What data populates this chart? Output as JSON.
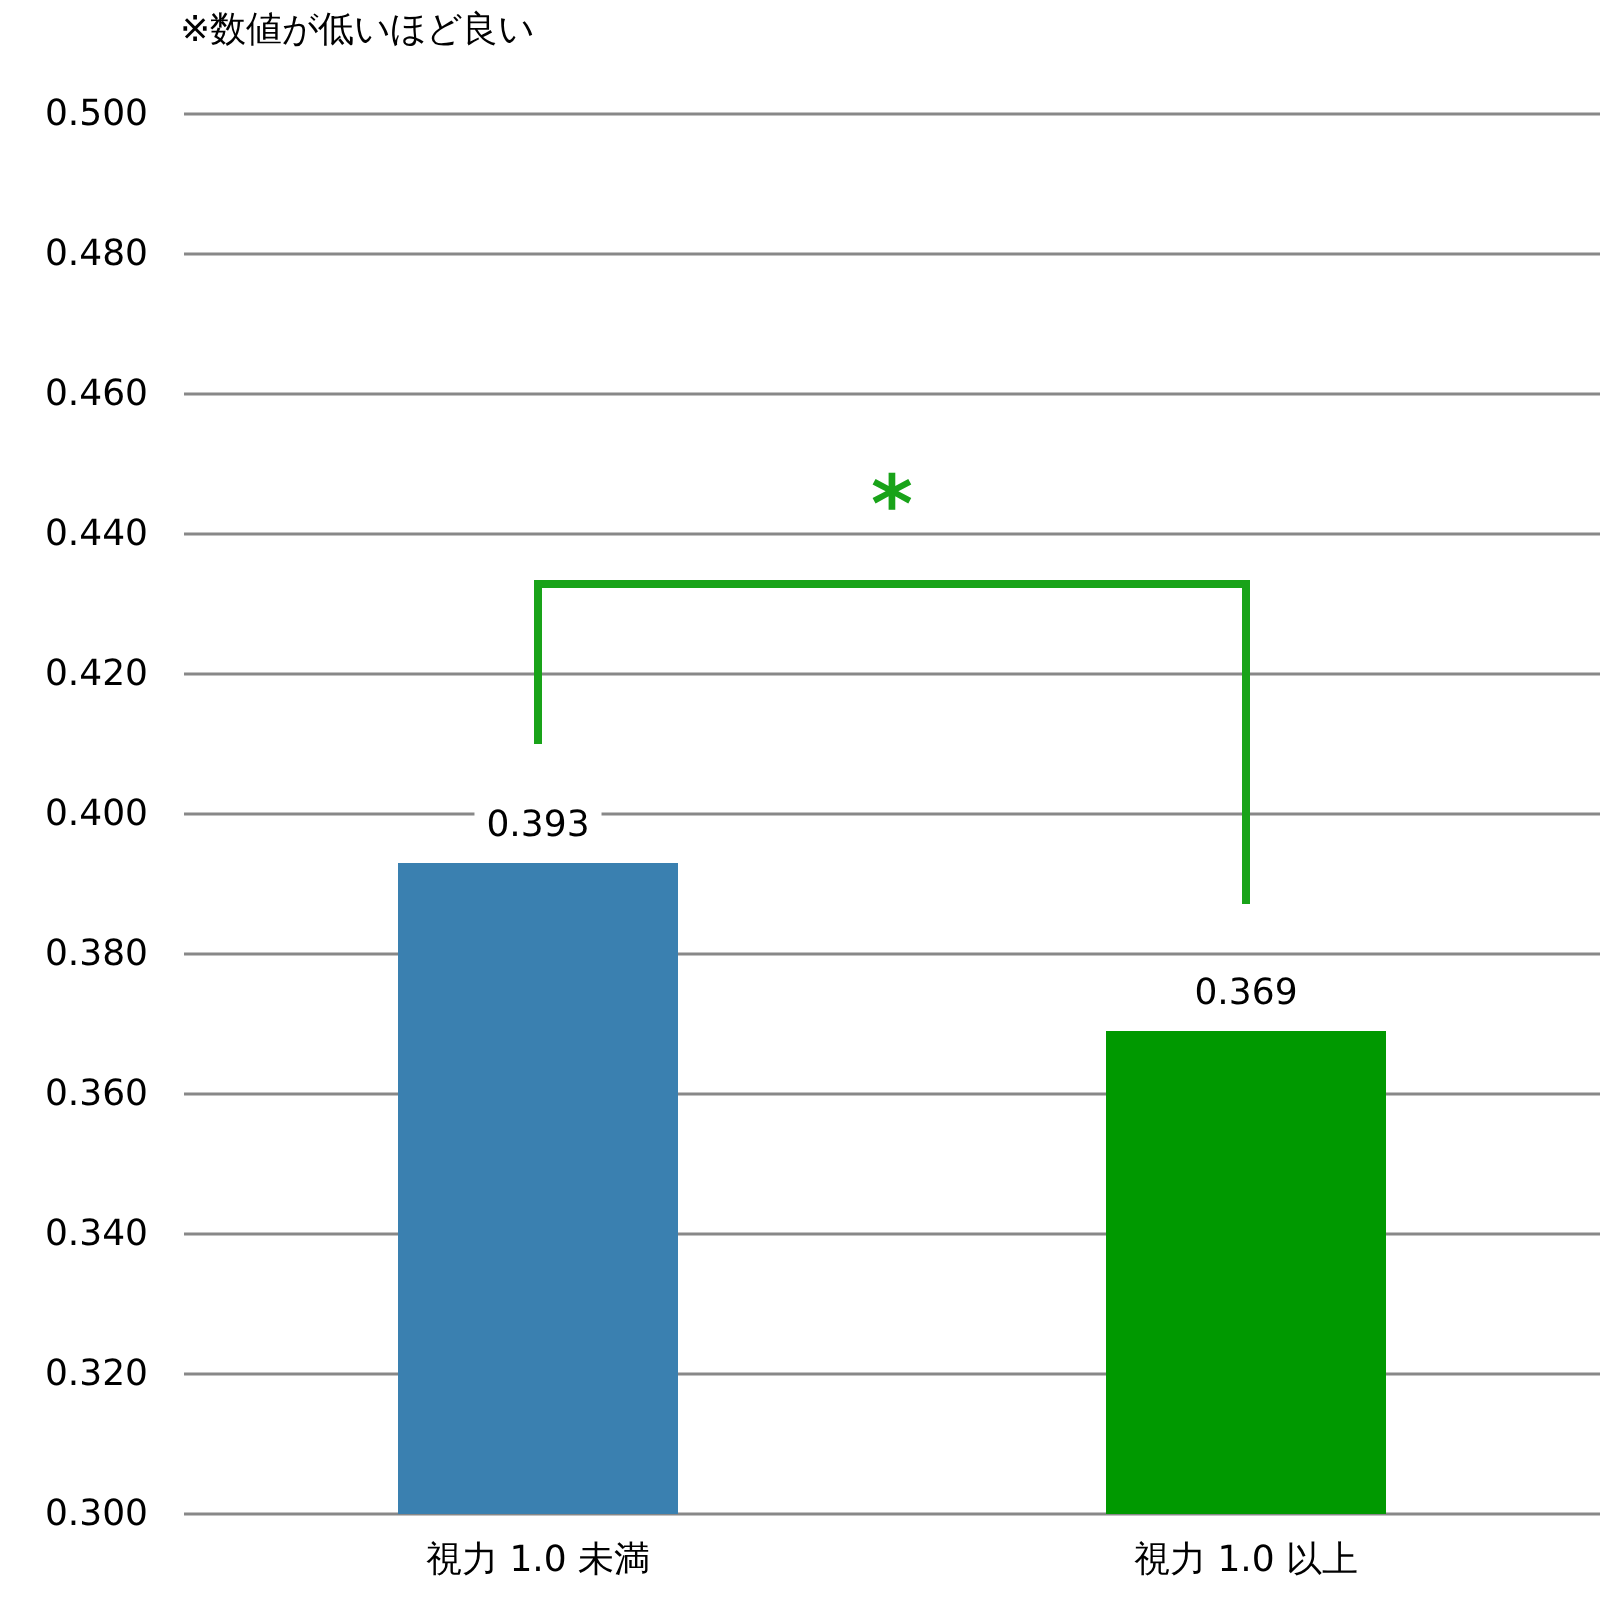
{
  "chart_data": {
    "type": "bar",
    "categories": [
      "視力 1.0 未満",
      "視力 1.0 以上"
    ],
    "values": [
      0.393,
      0.369
    ],
    "colors": [
      "#3a80b0",
      "#009900"
    ],
    "ylim": [
      0.3,
      0.5
    ],
    "yticks": [
      {
        "value": 0.3,
        "label": "0.300"
      },
      {
        "value": 0.32,
        "label": "0.320"
      },
      {
        "value": 0.34,
        "label": "0.340"
      },
      {
        "value": 0.36,
        "label": "0.360"
      },
      {
        "value": 0.38,
        "label": "0.380"
      },
      {
        "value": 0.4,
        "label": "0.400"
      },
      {
        "value": 0.42,
        "label": "0.420"
      },
      {
        "value": 0.44,
        "label": "0.440"
      },
      {
        "value": 0.46,
        "label": "0.460"
      },
      {
        "value": 0.48,
        "label": "0.480"
      },
      {
        "value": 0.5,
        "label": "0.500"
      }
    ],
    "grid": "y",
    "data_labels": true,
    "annotations": [
      "※数値が低いほど良い",
      "*"
    ]
  }
}
